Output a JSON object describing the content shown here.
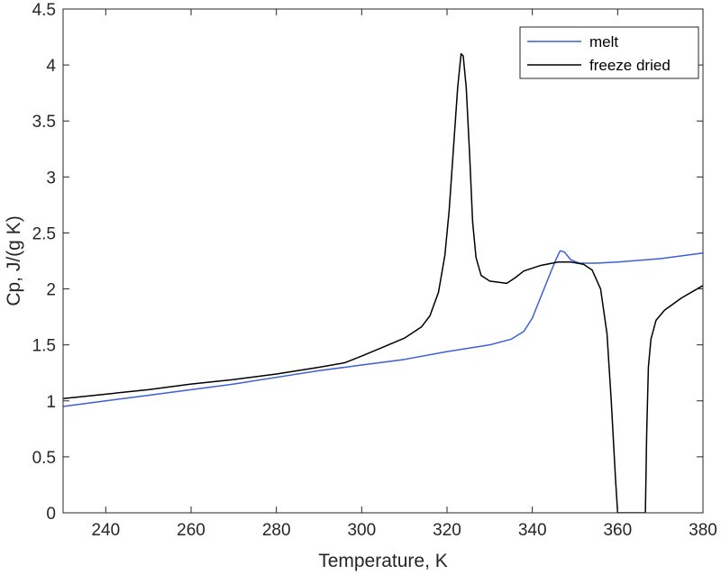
{
  "chart_data": {
    "type": "line",
    "title": "",
    "xlabel": "Temperature, K",
    "ylabel": "Cp, J/(g K)",
    "xlim": [
      230,
      380
    ],
    "ylim": [
      0,
      4.5
    ],
    "x_ticks": [
      240,
      260,
      280,
      300,
      320,
      340,
      360,
      380
    ],
    "x_tick_labels": [
      "240",
      "260",
      "280",
      "300",
      "320",
      "340",
      "360",
      "380"
    ],
    "y_ticks": [
      0,
      0.5,
      1,
      1.5,
      2,
      2.5,
      3,
      3.5,
      4,
      4.5
    ],
    "y_tick_labels": [
      "0",
      "0.5",
      "1",
      "1.5",
      "2",
      "2.5",
      "3",
      "3.5",
      "4",
      "4.5"
    ],
    "grid": false,
    "legend_position": "top-right",
    "series": [
      {
        "name": "melt",
        "color": "#3b5fd6",
        "points": [
          [
            230,
            0.95
          ],
          [
            240,
            1.0
          ],
          [
            250,
            1.05
          ],
          [
            260,
            1.1
          ],
          [
            270,
            1.15
          ],
          [
            280,
            1.21
          ],
          [
            290,
            1.27
          ],
          [
            300,
            1.32
          ],
          [
            310,
            1.37
          ],
          [
            320,
            1.44
          ],
          [
            330,
            1.5
          ],
          [
            335,
            1.55
          ],
          [
            338,
            1.62
          ],
          [
            340,
            1.74
          ],
          [
            342,
            1.93
          ],
          [
            344,
            2.12
          ],
          [
            345.5,
            2.26
          ],
          [
            346.5,
            2.34
          ],
          [
            347.5,
            2.33
          ],
          [
            349,
            2.26
          ],
          [
            351,
            2.23
          ],
          [
            355,
            2.23
          ],
          [
            360,
            2.24
          ],
          [
            370,
            2.27
          ],
          [
            380,
            2.32
          ]
        ]
      },
      {
        "name": "freeze dried",
        "color": "#000000",
        "points": [
          [
            230,
            1.02
          ],
          [
            240,
            1.06
          ],
          [
            250,
            1.1
          ],
          [
            260,
            1.15
          ],
          [
            270,
            1.19
          ],
          [
            280,
            1.24
          ],
          [
            290,
            1.3
          ],
          [
            296,
            1.34
          ],
          [
            300,
            1.4
          ],
          [
            305,
            1.48
          ],
          [
            310,
            1.56
          ],
          [
            314,
            1.66
          ],
          [
            316,
            1.76
          ],
          [
            318,
            1.97
          ],
          [
            319.5,
            2.3
          ],
          [
            320.5,
            2.7
          ],
          [
            321.5,
            3.25
          ],
          [
            322.5,
            3.8
          ],
          [
            323.3,
            4.1
          ],
          [
            323.8,
            4.08
          ],
          [
            324.5,
            3.8
          ],
          [
            325.3,
            3.2
          ],
          [
            326,
            2.6
          ],
          [
            326.8,
            2.28
          ],
          [
            328,
            2.12
          ],
          [
            330,
            2.07
          ],
          [
            332,
            2.06
          ],
          [
            334,
            2.05
          ],
          [
            336,
            2.1
          ],
          [
            338,
            2.16
          ],
          [
            342,
            2.21
          ],
          [
            346,
            2.24
          ],
          [
            349,
            2.24
          ],
          [
            352,
            2.22
          ],
          [
            354,
            2.17
          ],
          [
            356,
            2.0
          ],
          [
            357.5,
            1.6
          ],
          [
            358.5,
            1.0
          ],
          [
            359.5,
            0.3
          ],
          [
            360,
            0.0
          ],
          [
            366.5,
            0.0
          ],
          [
            366.8,
            0.7
          ],
          [
            367.2,
            1.3
          ],
          [
            367.8,
            1.55
          ],
          [
            369,
            1.72
          ],
          [
            371,
            1.81
          ],
          [
            375,
            1.92
          ],
          [
            380,
            2.03
          ]
        ]
      }
    ]
  }
}
